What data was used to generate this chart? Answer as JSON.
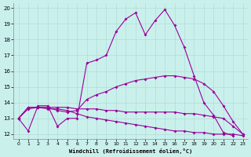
{
  "xlabel": "Windchill (Refroidissement éolien,°C)",
  "bg_color": "#caf0ec",
  "line_color": "#990099",
  "xlim": [
    -0.5,
    23.5
  ],
  "ylim": [
    11.7,
    20.3
  ],
  "xticks": [
    0,
    1,
    2,
    3,
    4,
    5,
    6,
    7,
    8,
    9,
    10,
    11,
    12,
    13,
    14,
    15,
    16,
    17,
    18,
    19,
    20,
    21,
    22,
    23
  ],
  "yticks": [
    12,
    13,
    14,
    15,
    16,
    17,
    18,
    19,
    20
  ],
  "series": [
    {
      "x": [
        0,
        1,
        2,
        3,
        4,
        5,
        6,
        7,
        8,
        9,
        10,
        11,
        12,
        13,
        14,
        15,
        16,
        17,
        18,
        19,
        20,
        21,
        22
      ],
      "y": [
        13.0,
        12.2,
        13.8,
        13.8,
        12.5,
        13.0,
        13.0,
        16.5,
        16.7,
        17.0,
        18.5,
        19.3,
        19.7,
        18.3,
        19.2,
        19.9,
        18.9,
        17.5,
        15.7,
        14.0,
        13.2,
        12.1,
        11.9
      ]
    },
    {
      "x": [
        0,
        1,
        2,
        3,
        4,
        5,
        6,
        7,
        8,
        9,
        10,
        11,
        12,
        13,
        14,
        15,
        16,
        17,
        18,
        19,
        20,
        21,
        22,
        23
      ],
      "y": [
        13.0,
        13.6,
        13.7,
        13.7,
        13.5,
        13.4,
        13.5,
        14.2,
        14.5,
        14.7,
        15.0,
        15.2,
        15.4,
        15.5,
        15.6,
        15.7,
        15.7,
        15.6,
        15.5,
        15.2,
        14.7,
        13.8,
        12.8,
        12.0
      ]
    },
    {
      "x": [
        0,
        1,
        2,
        3,
        4,
        5,
        6,
        7,
        8,
        9,
        10,
        11,
        12,
        13,
        14,
        15,
        16,
        17,
        18,
        19,
        20,
        21,
        22,
        23
      ],
      "y": [
        13.0,
        13.7,
        13.7,
        13.7,
        13.7,
        13.7,
        13.6,
        13.6,
        13.6,
        13.5,
        13.5,
        13.4,
        13.4,
        13.4,
        13.4,
        13.4,
        13.4,
        13.3,
        13.3,
        13.2,
        13.1,
        13.0,
        12.5,
        12.0
      ]
    },
    {
      "x": [
        0,
        1,
        2,
        3,
        4,
        5,
        6,
        7,
        8,
        9,
        10,
        11,
        12,
        13,
        14,
        15,
        16,
        17,
        18,
        19,
        20,
        21,
        22,
        23
      ],
      "y": [
        13.0,
        13.7,
        13.7,
        13.6,
        13.6,
        13.5,
        13.3,
        13.1,
        13.0,
        12.9,
        12.8,
        12.7,
        12.6,
        12.5,
        12.4,
        12.3,
        12.2,
        12.2,
        12.1,
        12.1,
        12.0,
        12.0,
        12.0,
        11.9
      ]
    }
  ]
}
